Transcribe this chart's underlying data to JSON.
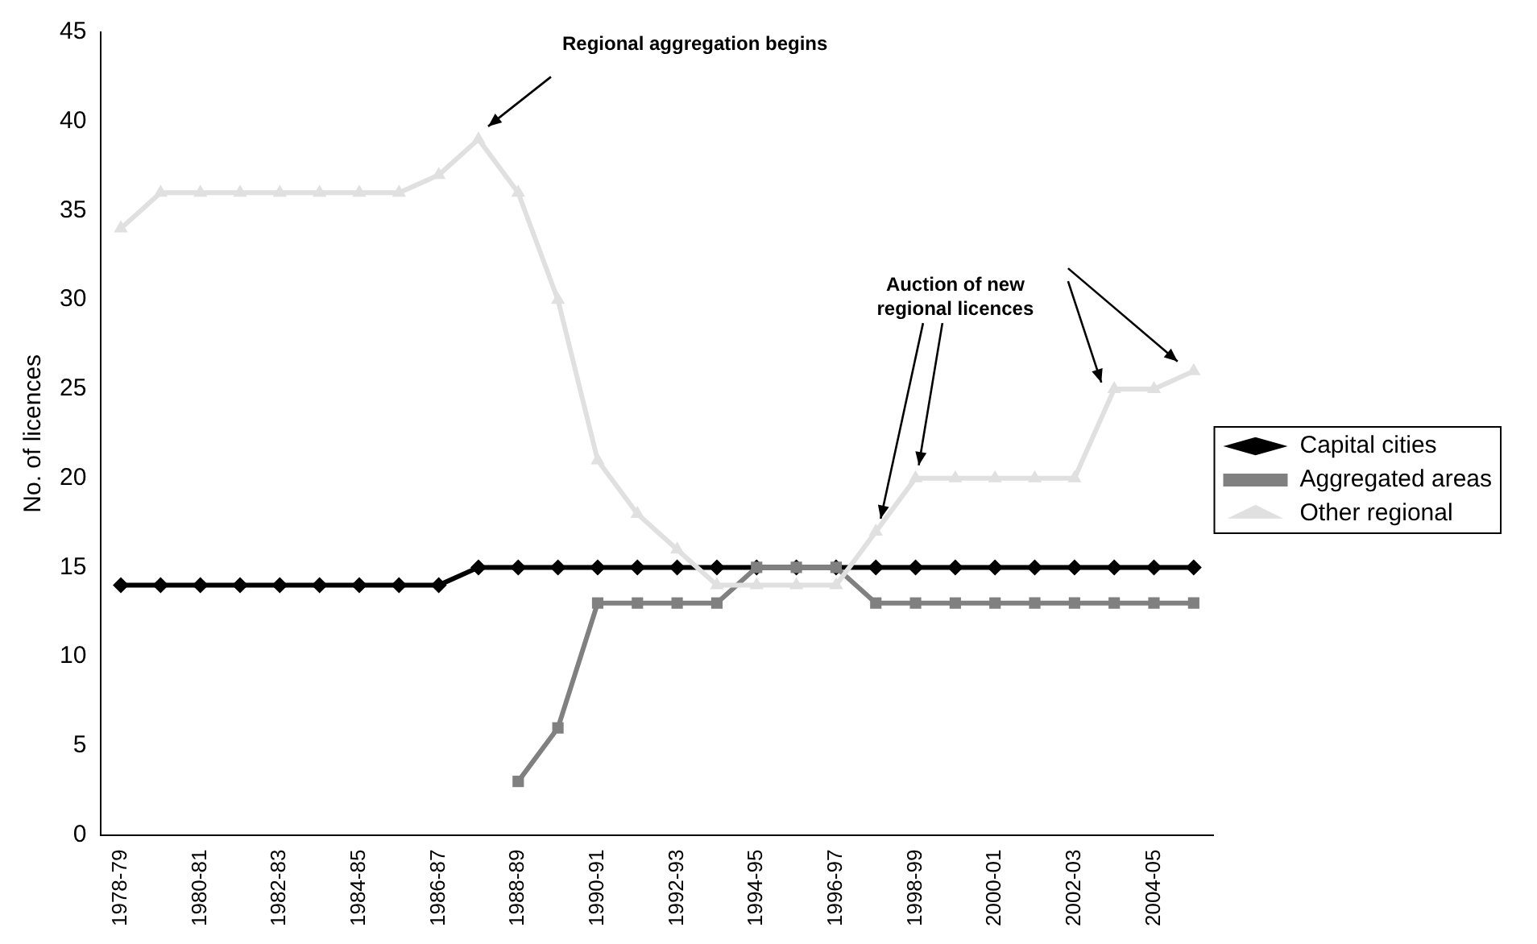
{
  "chart_data": {
    "type": "line",
    "ylabel": "No. of licences",
    "categories": [
      "1978-79",
      null,
      "1980-81",
      null,
      "1982-83",
      null,
      "1984-85",
      null,
      "1986-87",
      null,
      "1988-89",
      null,
      "1990-91",
      null,
      "1992-93",
      null,
      "1994-95",
      null,
      "1996-97",
      null,
      "1998-99",
      null,
      "2000-01",
      null,
      "2002-03",
      null,
      "2004-05",
      null
    ],
    "series": [
      {
        "name": "Capital cities",
        "color": "#000000",
        "marker": "diamond",
        "values": [
          14,
          14,
          14,
          14,
          14,
          14,
          14,
          14,
          14,
          15,
          15,
          15,
          15,
          15,
          15,
          15,
          15,
          15,
          15,
          15,
          15,
          15,
          15,
          15,
          15,
          15,
          15,
          15
        ]
      },
      {
        "name": "Aggregated areas",
        "color": "#808080",
        "marker": "square",
        "values": [
          null,
          null,
          null,
          null,
          null,
          null,
          null,
          null,
          null,
          null,
          3,
          6,
          13,
          13,
          13,
          13,
          15,
          15,
          15,
          13,
          13,
          13,
          13,
          13,
          13,
          13,
          13,
          13
        ]
      },
      {
        "name": "Other regional",
        "color": "#e0e0e0",
        "marker": "triangle",
        "values": [
          34,
          36,
          36,
          36,
          36,
          36,
          36,
          36,
          37,
          39,
          36,
          30,
          21,
          18,
          16,
          14,
          14,
          14,
          14,
          17,
          20,
          20,
          20,
          20,
          20,
          25,
          25,
          26
        ]
      }
    ],
    "ylim": [
      0,
      45
    ],
    "yticks": [
      0,
      5,
      10,
      15,
      20,
      25,
      30,
      35,
      40,
      45
    ],
    "grid": false,
    "legend": "right",
    "line_style": "solid",
    "annotations": [
      "Regional aggregation begins",
      {
        "text": "Auction of new regional licences",
        "x": "1998-99",
        "y": 20
      }
    ]
  }
}
